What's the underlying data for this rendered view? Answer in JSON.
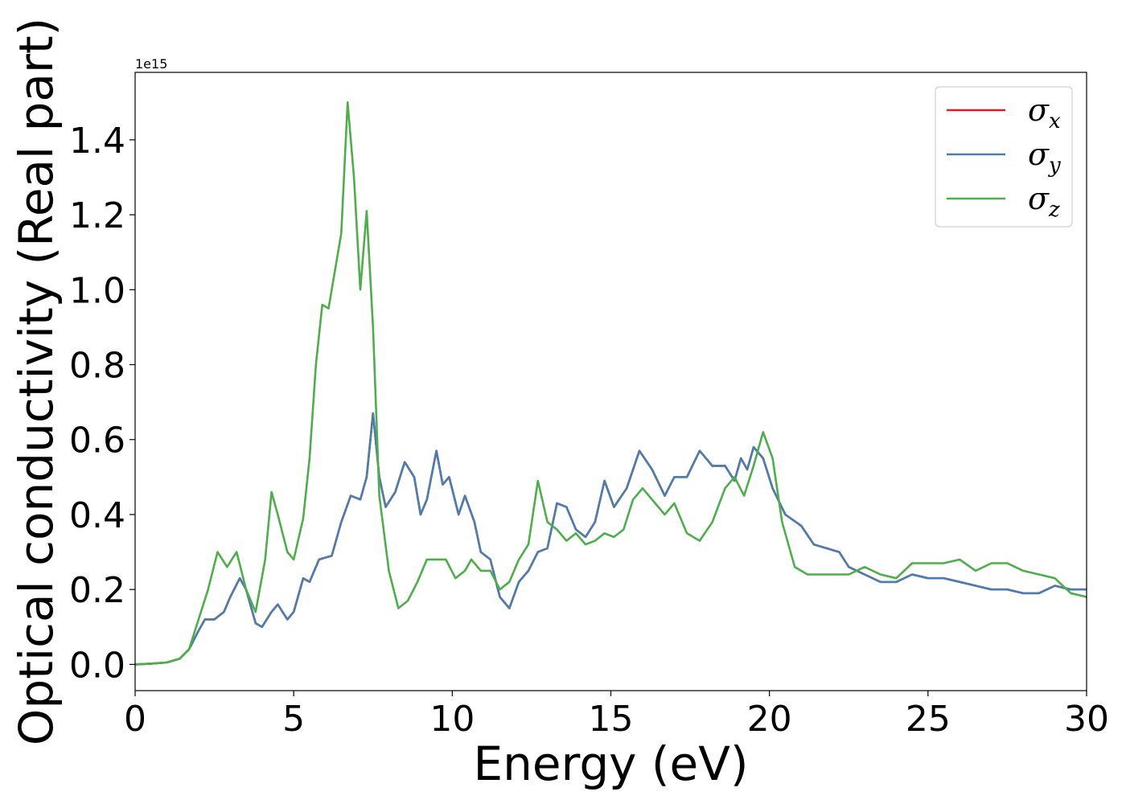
{
  "chart_data": {
    "type": "line",
    "xlabel": "Energy (eV)",
    "ylabel": "Optical conductivity (Real part)",
    "y_offset_text": "1e15",
    "xlim": [
      0,
      30
    ],
    "ylim": [
      -0.07,
      1.58
    ],
    "x_ticks": [
      0,
      5,
      10,
      15,
      20,
      25,
      30
    ],
    "x_tick_labels": [
      "0",
      "5",
      "10",
      "15",
      "20",
      "25",
      "30"
    ],
    "y_ticks": [
      0.0,
      0.2,
      0.4,
      0.6,
      0.8,
      1.0,
      1.2,
      1.4
    ],
    "y_tick_labels": [
      "0.0",
      "0.2",
      "0.4",
      "0.6",
      "0.8",
      "1.0",
      "1.2",
      "1.4"
    ],
    "grid": false,
    "legend_position": "top-right",
    "series": [
      {
        "name": "σx",
        "symbol": "σ",
        "subscript": "x",
        "color": "#e41a1c",
        "points": [
          [
            0,
            0
          ],
          [
            0.5,
            0.002
          ],
          [
            1.0,
            0.005
          ],
          [
            1.4,
            0.015
          ],
          [
            1.7,
            0.04
          ],
          [
            2.0,
            0.09
          ],
          [
            2.2,
            0.12
          ],
          [
            2.5,
            0.12
          ],
          [
            2.8,
            0.14
          ],
          [
            3.0,
            0.18
          ],
          [
            3.3,
            0.23
          ],
          [
            3.5,
            0.2
          ],
          [
            3.8,
            0.11
          ],
          [
            4.0,
            0.1
          ],
          [
            4.3,
            0.14
          ],
          [
            4.5,
            0.16
          ],
          [
            4.8,
            0.12
          ],
          [
            5.0,
            0.14
          ],
          [
            5.3,
            0.23
          ],
          [
            5.5,
            0.22
          ],
          [
            5.8,
            0.28
          ],
          [
            6.2,
            0.29
          ],
          [
            6.5,
            0.38
          ],
          [
            6.8,
            0.45
          ],
          [
            7.1,
            0.44
          ],
          [
            7.3,
            0.5
          ],
          [
            7.5,
            0.67
          ],
          [
            7.7,
            0.5
          ],
          [
            7.9,
            0.42
          ],
          [
            8.2,
            0.46
          ],
          [
            8.5,
            0.54
          ],
          [
            8.8,
            0.5
          ],
          [
            9.0,
            0.4
          ],
          [
            9.2,
            0.44
          ],
          [
            9.5,
            0.57
          ],
          [
            9.7,
            0.48
          ],
          [
            9.9,
            0.5
          ],
          [
            10.2,
            0.4
          ],
          [
            10.4,
            0.45
          ],
          [
            10.7,
            0.38
          ],
          [
            10.9,
            0.3
          ],
          [
            11.2,
            0.28
          ],
          [
            11.5,
            0.18
          ],
          [
            11.8,
            0.15
          ],
          [
            12.1,
            0.22
          ],
          [
            12.4,
            0.25
          ],
          [
            12.7,
            0.3
          ],
          [
            13.0,
            0.31
          ],
          [
            13.3,
            0.43
          ],
          [
            13.6,
            0.42
          ],
          [
            13.9,
            0.36
          ],
          [
            14.2,
            0.34
          ],
          [
            14.5,
            0.38
          ],
          [
            14.8,
            0.49
          ],
          [
            15.1,
            0.42
          ],
          [
            15.5,
            0.47
          ],
          [
            15.9,
            0.57
          ],
          [
            16.3,
            0.52
          ],
          [
            16.7,
            0.45
          ],
          [
            17.0,
            0.5
          ],
          [
            17.4,
            0.5
          ],
          [
            17.8,
            0.57
          ],
          [
            18.2,
            0.53
          ],
          [
            18.6,
            0.53
          ],
          [
            18.9,
            0.49
          ],
          [
            19.1,
            0.55
          ],
          [
            19.3,
            0.52
          ],
          [
            19.5,
            0.58
          ],
          [
            19.8,
            0.55
          ],
          [
            20.1,
            0.47
          ],
          [
            20.5,
            0.4
          ],
          [
            21.0,
            0.37
          ],
          [
            21.4,
            0.32
          ],
          [
            21.8,
            0.31
          ],
          [
            22.2,
            0.3
          ],
          [
            22.5,
            0.26
          ],
          [
            23.0,
            0.24
          ],
          [
            23.5,
            0.22
          ],
          [
            24.0,
            0.22
          ],
          [
            24.5,
            0.24
          ],
          [
            25.0,
            0.23
          ],
          [
            25.5,
            0.23
          ],
          [
            26.0,
            0.22
          ],
          [
            26.5,
            0.21
          ],
          [
            27.0,
            0.2
          ],
          [
            27.5,
            0.2
          ],
          [
            28.0,
            0.19
          ],
          [
            28.5,
            0.19
          ],
          [
            29.0,
            0.21
          ],
          [
            29.5,
            0.2
          ],
          [
            30.0,
            0.2
          ]
        ]
      },
      {
        "name": "σy",
        "symbol": "σ",
        "subscript": "y",
        "color": "#4a7eb0",
        "points": [
          [
            0,
            0
          ],
          [
            0.5,
            0.002
          ],
          [
            1.0,
            0.005
          ],
          [
            1.4,
            0.015
          ],
          [
            1.7,
            0.04
          ],
          [
            2.0,
            0.09
          ],
          [
            2.2,
            0.12
          ],
          [
            2.5,
            0.12
          ],
          [
            2.8,
            0.14
          ],
          [
            3.0,
            0.18
          ],
          [
            3.3,
            0.23
          ],
          [
            3.5,
            0.2
          ],
          [
            3.8,
            0.11
          ],
          [
            4.0,
            0.1
          ],
          [
            4.3,
            0.14
          ],
          [
            4.5,
            0.16
          ],
          [
            4.8,
            0.12
          ],
          [
            5.0,
            0.14
          ],
          [
            5.3,
            0.23
          ],
          [
            5.5,
            0.22
          ],
          [
            5.8,
            0.28
          ],
          [
            6.2,
            0.29
          ],
          [
            6.5,
            0.38
          ],
          [
            6.8,
            0.45
          ],
          [
            7.1,
            0.44
          ],
          [
            7.3,
            0.5
          ],
          [
            7.5,
            0.67
          ],
          [
            7.7,
            0.5
          ],
          [
            7.9,
            0.42
          ],
          [
            8.2,
            0.46
          ],
          [
            8.5,
            0.54
          ],
          [
            8.8,
            0.5
          ],
          [
            9.0,
            0.4
          ],
          [
            9.2,
            0.44
          ],
          [
            9.5,
            0.57
          ],
          [
            9.7,
            0.48
          ],
          [
            9.9,
            0.5
          ],
          [
            10.2,
            0.4
          ],
          [
            10.4,
            0.45
          ],
          [
            10.7,
            0.38
          ],
          [
            10.9,
            0.3
          ],
          [
            11.2,
            0.28
          ],
          [
            11.5,
            0.18
          ],
          [
            11.8,
            0.15
          ],
          [
            12.1,
            0.22
          ],
          [
            12.4,
            0.25
          ],
          [
            12.7,
            0.3
          ],
          [
            13.0,
            0.31
          ],
          [
            13.3,
            0.43
          ],
          [
            13.6,
            0.42
          ],
          [
            13.9,
            0.36
          ],
          [
            14.2,
            0.34
          ],
          [
            14.5,
            0.38
          ],
          [
            14.8,
            0.49
          ],
          [
            15.1,
            0.42
          ],
          [
            15.5,
            0.47
          ],
          [
            15.9,
            0.57
          ],
          [
            16.3,
            0.52
          ],
          [
            16.7,
            0.45
          ],
          [
            17.0,
            0.5
          ],
          [
            17.4,
            0.5
          ],
          [
            17.8,
            0.57
          ],
          [
            18.2,
            0.53
          ],
          [
            18.6,
            0.53
          ],
          [
            18.9,
            0.49
          ],
          [
            19.1,
            0.55
          ],
          [
            19.3,
            0.52
          ],
          [
            19.5,
            0.58
          ],
          [
            19.8,
            0.55
          ],
          [
            20.1,
            0.47
          ],
          [
            20.5,
            0.4
          ],
          [
            21.0,
            0.37
          ],
          [
            21.4,
            0.32
          ],
          [
            21.8,
            0.31
          ],
          [
            22.2,
            0.3
          ],
          [
            22.5,
            0.26
          ],
          [
            23.0,
            0.24
          ],
          [
            23.5,
            0.22
          ],
          [
            24.0,
            0.22
          ],
          [
            24.5,
            0.24
          ],
          [
            25.0,
            0.23
          ],
          [
            25.5,
            0.23
          ],
          [
            26.0,
            0.22
          ],
          [
            26.5,
            0.21
          ],
          [
            27.0,
            0.2
          ],
          [
            27.5,
            0.2
          ],
          [
            28.0,
            0.19
          ],
          [
            28.5,
            0.19
          ],
          [
            29.0,
            0.21
          ],
          [
            29.5,
            0.2
          ],
          [
            30.0,
            0.2
          ]
        ]
      },
      {
        "name": "σz",
        "symbol": "σ",
        "subscript": "z",
        "color": "#4daf4a",
        "points": [
          [
            0,
            0
          ],
          [
            0.5,
            0.002
          ],
          [
            1.0,
            0.005
          ],
          [
            1.4,
            0.015
          ],
          [
            1.7,
            0.04
          ],
          [
            2.0,
            0.12
          ],
          [
            2.3,
            0.2
          ],
          [
            2.6,
            0.3
          ],
          [
            2.9,
            0.26
          ],
          [
            3.2,
            0.3
          ],
          [
            3.5,
            0.2
          ],
          [
            3.8,
            0.14
          ],
          [
            4.1,
            0.28
          ],
          [
            4.3,
            0.46
          ],
          [
            4.5,
            0.4
          ],
          [
            4.8,
            0.3
          ],
          [
            5.0,
            0.28
          ],
          [
            5.3,
            0.39
          ],
          [
            5.5,
            0.55
          ],
          [
            5.7,
            0.8
          ],
          [
            5.9,
            0.96
          ],
          [
            6.1,
            0.95
          ],
          [
            6.3,
            1.05
          ],
          [
            6.5,
            1.15
          ],
          [
            6.7,
            1.5
          ],
          [
            6.9,
            1.3
          ],
          [
            7.1,
            1.0
          ],
          [
            7.3,
            1.21
          ],
          [
            7.5,
            0.9
          ],
          [
            7.7,
            0.45
          ],
          [
            8.0,
            0.25
          ],
          [
            8.3,
            0.15
          ],
          [
            8.6,
            0.17
          ],
          [
            8.9,
            0.22
          ],
          [
            9.2,
            0.28
          ],
          [
            9.5,
            0.28
          ],
          [
            9.8,
            0.28
          ],
          [
            10.1,
            0.23
          ],
          [
            10.4,
            0.25
          ],
          [
            10.6,
            0.28
          ],
          [
            10.9,
            0.25
          ],
          [
            11.2,
            0.25
          ],
          [
            11.5,
            0.2
          ],
          [
            11.8,
            0.22
          ],
          [
            12.1,
            0.28
          ],
          [
            12.4,
            0.32
          ],
          [
            12.7,
            0.49
          ],
          [
            13.0,
            0.38
          ],
          [
            13.3,
            0.36
          ],
          [
            13.6,
            0.33
          ],
          [
            13.9,
            0.35
          ],
          [
            14.2,
            0.32
          ],
          [
            14.5,
            0.33
          ],
          [
            14.8,
            0.35
          ],
          [
            15.1,
            0.34
          ],
          [
            15.4,
            0.36
          ],
          [
            15.7,
            0.44
          ],
          [
            16.0,
            0.47
          ],
          [
            16.4,
            0.43
          ],
          [
            16.7,
            0.4
          ],
          [
            17.0,
            0.43
          ],
          [
            17.4,
            0.35
          ],
          [
            17.8,
            0.33
          ],
          [
            18.2,
            0.38
          ],
          [
            18.6,
            0.47
          ],
          [
            18.9,
            0.5
          ],
          [
            19.2,
            0.45
          ],
          [
            19.5,
            0.53
          ],
          [
            19.8,
            0.62
          ],
          [
            20.1,
            0.55
          ],
          [
            20.4,
            0.38
          ],
          [
            20.8,
            0.26
          ],
          [
            21.2,
            0.24
          ],
          [
            21.6,
            0.24
          ],
          [
            22.0,
            0.24
          ],
          [
            22.5,
            0.24
          ],
          [
            23.0,
            0.26
          ],
          [
            23.5,
            0.24
          ],
          [
            24.0,
            0.23
          ],
          [
            24.5,
            0.27
          ],
          [
            25.0,
            0.27
          ],
          [
            25.5,
            0.27
          ],
          [
            26.0,
            0.28
          ],
          [
            26.5,
            0.25
          ],
          [
            27.0,
            0.27
          ],
          [
            27.5,
            0.27
          ],
          [
            28.0,
            0.25
          ],
          [
            28.5,
            0.24
          ],
          [
            29.0,
            0.23
          ],
          [
            29.5,
            0.19
          ],
          [
            30.0,
            0.18
          ]
        ]
      }
    ]
  }
}
